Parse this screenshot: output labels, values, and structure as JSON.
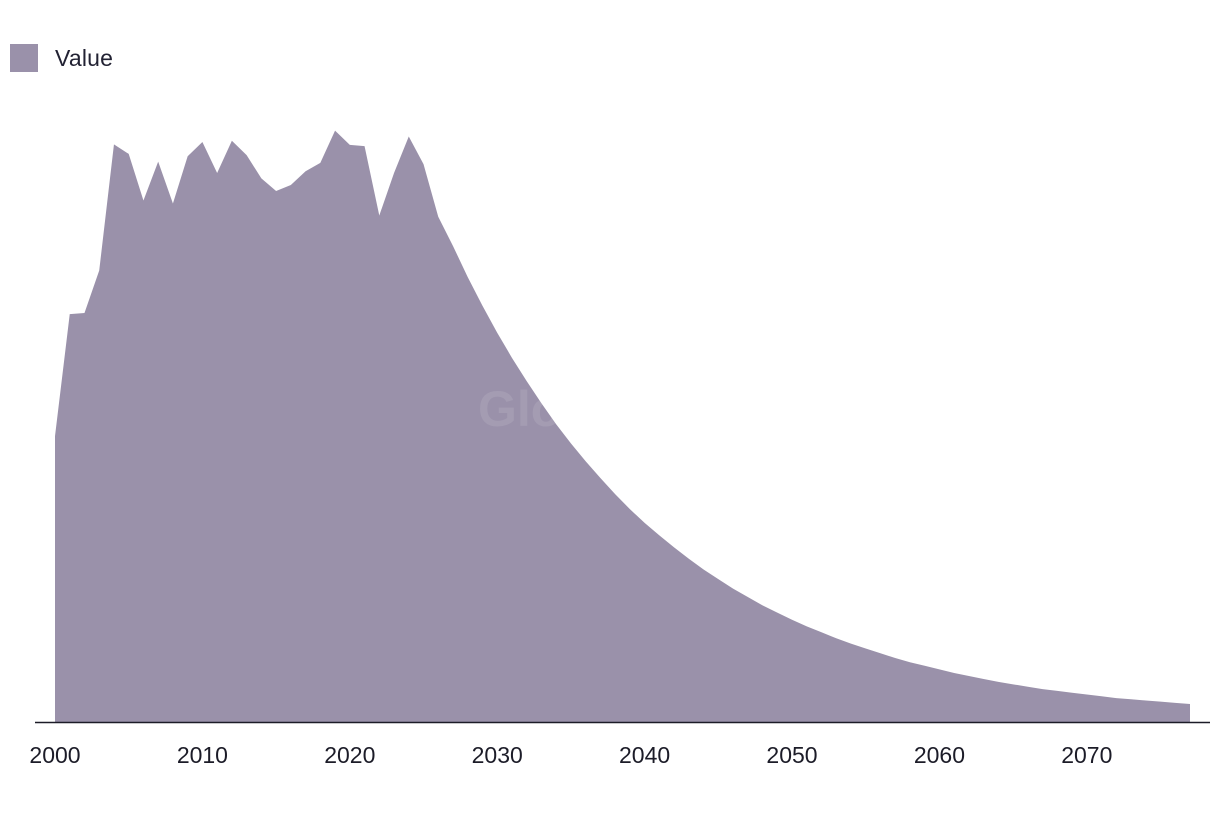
{
  "legend": {
    "label": "Value",
    "color": "#9a91aa"
  },
  "watermark": "GlobalData",
  "colors": {
    "area": "#9a91aa",
    "axis": "#1c1c28",
    "tick_text": "#1c1c28"
  },
  "chart_data": {
    "type": "area",
    "title": "",
    "xlabel": "",
    "ylabel": "",
    "xlim": [
      2000,
      2077
    ],
    "ylim": [
      0,
      100
    ],
    "grid": false,
    "legend_position": "top-left",
    "x_ticks": [
      2000,
      2010,
      2020,
      2030,
      2040,
      2050,
      2060,
      2070
    ],
    "x": [
      2000,
      2001,
      2002,
      2003,
      2004,
      2005,
      2006,
      2007,
      2008,
      2009,
      2010,
      2011,
      2012,
      2013,
      2014,
      2015,
      2016,
      2017,
      2018,
      2019,
      2020,
      2021,
      2022,
      2023,
      2024,
      2025,
      2026,
      2027,
      2028,
      2029,
      2030,
      2031,
      2032,
      2033,
      2034,
      2035,
      2036,
      2037,
      2038,
      2039,
      2040,
      2041,
      2042,
      2043,
      2044,
      2045,
      2046,
      2047,
      2048,
      2049,
      2050,
      2051,
      2052,
      2053,
      2054,
      2055,
      2056,
      2057,
      2058,
      2059,
      2060,
      2061,
      2062,
      2063,
      2064,
      2065,
      2066,
      2067,
      2068,
      2069,
      2070,
      2071,
      2072,
      2073,
      2074,
      2075,
      2076,
      2077
    ],
    "series": [
      {
        "name": "Value",
        "values": [
          47.8,
          68.2,
          68.4,
          75.5,
          96.6,
          95.0,
          87.2,
          93.7,
          86.7,
          94.6,
          97.0,
          91.8,
          97.2,
          94.8,
          90.9,
          88.8,
          89.8,
          92.1,
          93.5,
          98.9,
          96.5,
          96.3,
          84.7,
          91.8,
          97.9,
          93.3,
          84.5,
          79.6,
          74.4,
          69.6,
          65.1,
          60.9,
          57.0,
          53.3,
          49.8,
          46.6,
          43.6,
          40.8,
          38.1,
          35.6,
          33.3,
          31.2,
          29.2,
          27.3,
          25.5,
          23.9,
          22.3,
          20.9,
          19.5,
          18.3,
          17.1,
          16.0,
          15.0,
          14.0,
          13.1,
          12.3,
          11.5,
          10.7,
          10.0,
          9.4,
          8.8,
          8.2,
          7.7,
          7.2,
          6.7,
          6.3,
          5.9,
          5.5,
          5.2,
          4.9,
          4.6,
          4.3,
          4.0,
          3.8,
          3.6,
          3.4,
          3.2,
          3.0
        ]
      }
    ]
  }
}
